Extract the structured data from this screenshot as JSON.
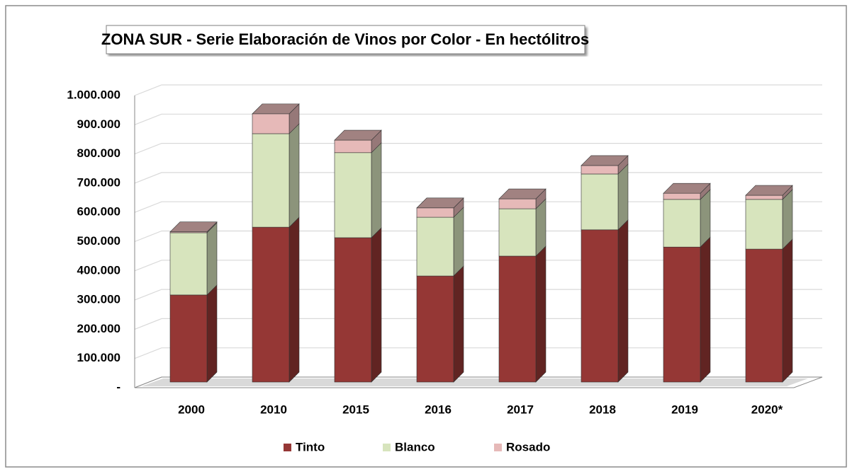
{
  "chart_data": {
    "type": "bar3d_stacked",
    "title": "ZONA SUR - Serie Elaboración de Vinos  por Color - En hectólitros",
    "categories": [
      "2000",
      "2010",
      "2015",
      "2016",
      "2017",
      "2018",
      "2019",
      "2020*"
    ],
    "series": [
      {
        "name": "Tinto",
        "color": "#953735",
        "values": [
          298000,
          530000,
          494000,
          363000,
          431000,
          521000,
          462000,
          455000
        ]
      },
      {
        "name": "Blanco",
        "color": "#d7e4bd",
        "values": [
          213000,
          320000,
          291000,
          201000,
          162000,
          191000,
          163000,
          170000
        ]
      },
      {
        "name": "Rosado",
        "color": "#e6b9b8",
        "values": [
          3000,
          68000,
          43000,
          32000,
          34000,
          29000,
          21000,
          14000
        ]
      }
    ],
    "ylim": [
      0,
      1000000
    ],
    "yticks": [
      {
        "value": 0,
        "label": "-"
      },
      {
        "value": 100000,
        "label": "100.000"
      },
      {
        "value": 200000,
        "label": "200.000"
      },
      {
        "value": 300000,
        "label": "300.000"
      },
      {
        "value": 400000,
        "label": "400.000"
      },
      {
        "value": 500000,
        "label": "500.000"
      },
      {
        "value": 600000,
        "label": "600.000"
      },
      {
        "value": 700000,
        "label": "700.000"
      },
      {
        "value": 800000,
        "label": "800.000"
      },
      {
        "value": 900000,
        "label": "900.000"
      },
      {
        "value": 1000000,
        "label": "1.000.000"
      }
    ],
    "grid": true,
    "legend": "bottom"
  }
}
